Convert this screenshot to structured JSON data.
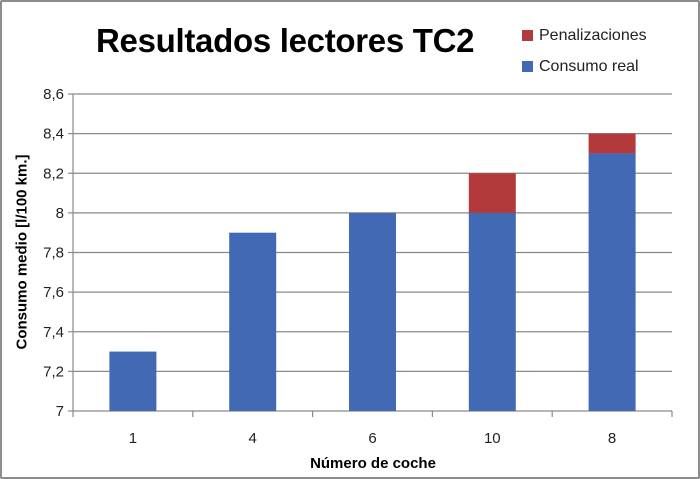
{
  "chart_data": {
    "type": "bar",
    "stacked": true,
    "title": "Resultados lectores TC2",
    "xlabel": "Número de coche",
    "ylabel": "Consumo medio [l/100 km.]",
    "categories": [
      "1",
      "4",
      "6",
      "10",
      "8"
    ],
    "series": [
      {
        "name": "Consumo real",
        "color": "#4169b4",
        "values": [
          7.3,
          7.9,
          8.0,
          8.0,
          8.3
        ]
      },
      {
        "name": "Penalizaciones",
        "color": "#b23a3a",
        "values": [
          0,
          0,
          0,
          0.2,
          0.1
        ]
      }
    ],
    "ylim": [
      7,
      8.6
    ],
    "yticks": [
      "7",
      "7,2",
      "7,4",
      "7,6",
      "7,8",
      "8",
      "8,2",
      "8,4",
      "8,6"
    ],
    "grid": true,
    "legend_position": "top-right"
  },
  "legend": [
    {
      "label": "Penalizaciones",
      "color": "#b23a3a"
    },
    {
      "label": "Consumo real",
      "color": "#4169b4"
    }
  ]
}
